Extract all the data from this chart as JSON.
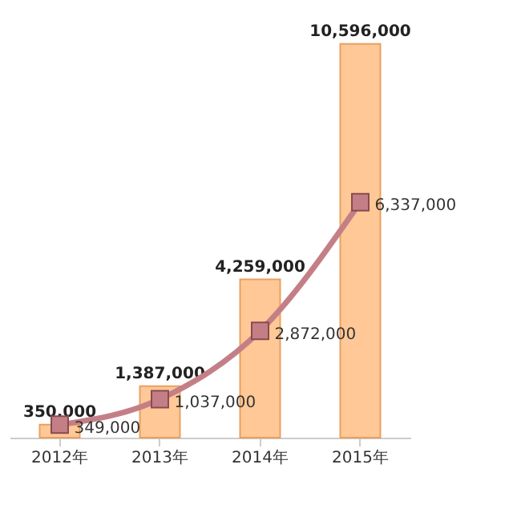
{
  "chart_data": {
    "type": "bar",
    "categories": [
      "2012年",
      "2013年",
      "2014年",
      "2015年"
    ],
    "series": [
      {
        "color": "#ffc896",
        "values": [
          350000,
          1387000,
          4259000,
          10596000
        ],
        "value_labels": [
          "350,000",
          "1,387,000",
          "4,259,000",
          "10,596,000"
        ]
      },
      {
        "type": "line",
        "color": "#c47f86",
        "marker": "square",
        "values": [
          349000,
          1037000,
          2872000,
          6337000
        ],
        "value_labels": [
          "349,000",
          "1,037,000",
          "2,872,000",
          "6,337,000"
        ]
      }
    ],
    "tick_labels": "x"
  }
}
